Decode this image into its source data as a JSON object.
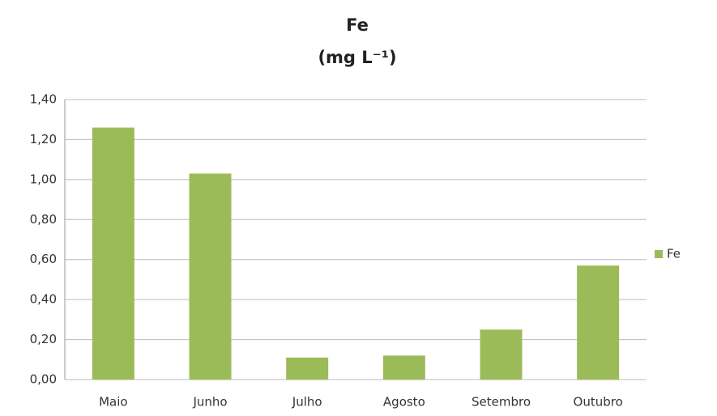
{
  "chart_data": {
    "type": "bar",
    "title": "Fe",
    "subtitle": "(mg L⁻¹)",
    "categories": [
      "Maio",
      "Junho",
      "Julho",
      "Agosto",
      "Setembro",
      "Outubro"
    ],
    "series": [
      {
        "name": "Fe",
        "color": "#9bbb59",
        "values": [
          1.26,
          1.03,
          0.11,
          0.12,
          0.25,
          0.57
        ]
      }
    ],
    "ylim": [
      0,
      1.4
    ],
    "yticks": [
      {
        "value": 0,
        "label": "0,00"
      },
      {
        "value": 0.2,
        "label": "0,20"
      },
      {
        "value": 0.4,
        "label": "0,40"
      },
      {
        "value": 0.6,
        "label": "0,60"
      },
      {
        "value": 0.8,
        "label": "0,80"
      },
      {
        "value": 1.0,
        "label": "1,00"
      },
      {
        "value": 1.2,
        "label": "1,20"
      },
      {
        "value": 1.4,
        "label": "1,40"
      }
    ],
    "grid": true,
    "legend": "right"
  }
}
